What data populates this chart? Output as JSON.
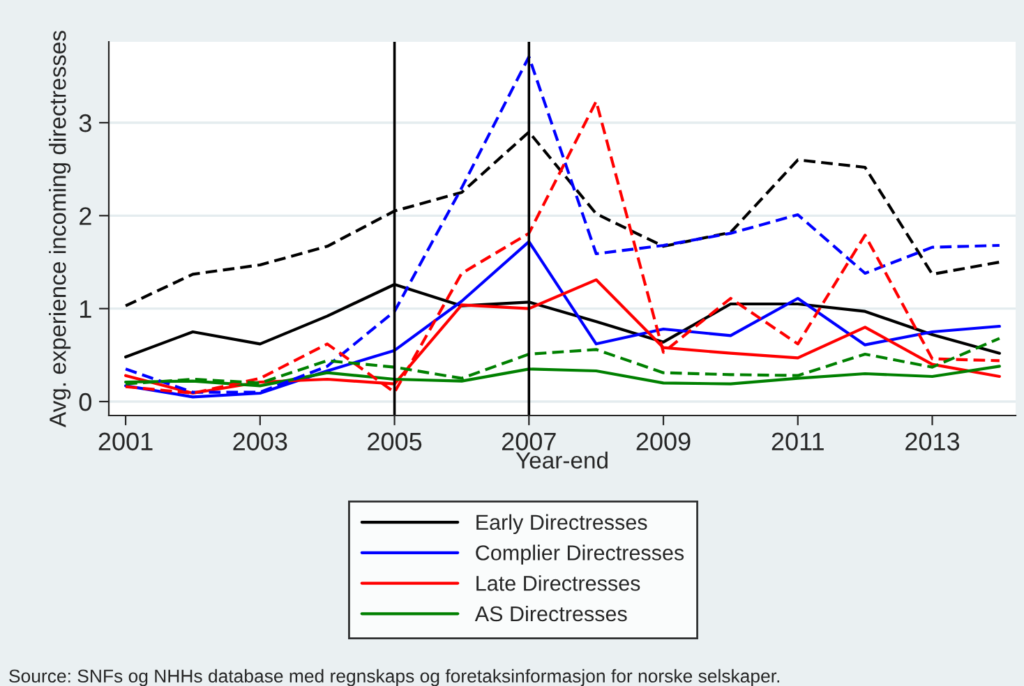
{
  "chart_data": {
    "type": "line",
    "xlabel": "Year-end",
    "ylabel": "Avg. experience incoming directresses",
    "x": [
      2001,
      2002,
      2003,
      2004,
      2005,
      2006,
      2007,
      2008,
      2009,
      2010,
      2011,
      2012,
      2013,
      2014
    ],
    "xlim": [
      2000.75,
      2014.24
    ],
    "xticks": [
      2001,
      2003,
      2005,
      2007,
      2009,
      2011,
      2013
    ],
    "ylim": [
      -0.15,
      3.87
    ],
    "yticks": [
      0,
      1,
      2,
      3
    ],
    "grid": "y",
    "legend": "bottom",
    "marker": "none",
    "series": [
      {
        "name": "Early Directresses",
        "color": "#000000",
        "line_style": "solid",
        "values": [
          0.48,
          0.75,
          0.62,
          0.92,
          1.26,
          1.03,
          1.07,
          0.86,
          0.64,
          1.05,
          1.05,
          0.97,
          0.72,
          0.52
        ]
      },
      {
        "name": "Complier Directresses",
        "color": "#0000ff",
        "line_style": "solid",
        "values": [
          0.17,
          0.05,
          0.09,
          0.33,
          0.55,
          1.08,
          1.72,
          0.62,
          0.78,
          0.71,
          1.11,
          0.61,
          0.75,
          0.81
        ]
      },
      {
        "name": "Late Directresses",
        "color": "#ff0000",
        "line_style": "solid",
        "values": [
          0.28,
          0.09,
          0.21,
          0.24,
          0.19,
          1.04,
          1.0,
          1.31,
          0.58,
          0.52,
          0.47,
          0.8,
          0.4,
          0.27
        ]
      },
      {
        "name": "AS Directresses",
        "color": "#008000",
        "line_style": "solid",
        "values": [
          0.21,
          0.22,
          0.17,
          0.31,
          0.24,
          0.22,
          0.35,
          0.33,
          0.2,
          0.19,
          0.25,
          0.3,
          0.27,
          0.38
        ]
      },
      {
        "color": "#000000",
        "line_style": "dashed",
        "values": [
          1.03,
          1.37,
          1.47,
          1.67,
          2.05,
          2.25,
          2.9,
          2.02,
          1.67,
          1.82,
          2.6,
          2.52,
          1.37,
          1.5
        ]
      },
      {
        "color": "#0000ff",
        "line_style": "dashed",
        "values": [
          0.35,
          0.1,
          0.1,
          0.38,
          0.97,
          2.3,
          3.71,
          1.59,
          1.68,
          1.81,
          2.01,
          1.38,
          1.66,
          1.68
        ]
      },
      {
        "color": "#ff0000",
        "line_style": "dashed",
        "values": [
          0.16,
          0.09,
          0.25,
          0.62,
          0.1,
          1.38,
          1.81,
          3.23,
          0.53,
          1.11,
          0.62,
          1.79,
          0.46,
          0.44
        ]
      },
      {
        "color": "#008000",
        "line_style": "dashed",
        "values": [
          0.19,
          0.24,
          0.2,
          0.44,
          0.37,
          0.25,
          0.51,
          0.56,
          0.31,
          0.29,
          0.28,
          0.51,
          0.37,
          0.68
        ]
      }
    ],
    "ref_lines": [
      {
        "axis": "x",
        "value": 2005,
        "color": "#000000",
        "line_style": "solid"
      },
      {
        "axis": "x",
        "value": 2007,
        "color": "#000000",
        "line_style": "solid"
      }
    ],
    "annotations": [
      "Source: SNFs og NHHs database med regnskaps og foretaksinformasjon for norske selskaper."
    ]
  }
}
